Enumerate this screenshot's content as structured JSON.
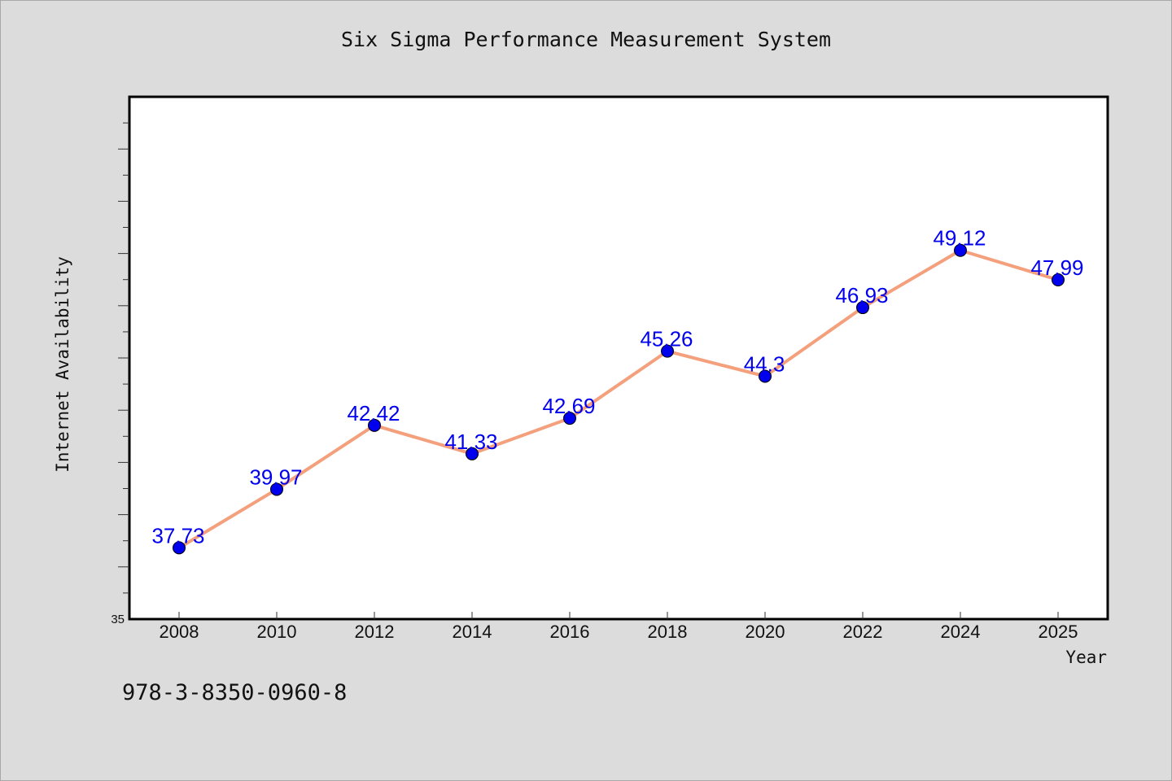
{
  "chart_data": {
    "type": "line",
    "title": "Six Sigma Performance Measurement System",
    "xlabel": "Year",
    "ylabel": "Internet Availability",
    "categories": [
      "2008",
      "2010",
      "2012",
      "2014",
      "2016",
      "2018",
      "2020",
      "2022",
      "2024",
      "2025"
    ],
    "series": [
      {
        "values": [
          37.73,
          39.97,
          42.42,
          41.33,
          42.69,
          45.26,
          44.3,
          46.93,
          49.12,
          47.99
        ]
      }
    ],
    "data_labels": [
      "37.73",
      "39.97",
      "42.42",
      "41.33",
      "42.69",
      "45.26",
      "44.3",
      "46.93",
      "49.12",
      "47.99"
    ],
    "y_tick_labels": [
      "35"
    ],
    "ylim": [
      35,
      55
    ],
    "grid": false,
    "legend": "none",
    "colors": {
      "line": "#f4a07c",
      "marker": "#0000ee",
      "data_label": "#0000ee",
      "plot_background": "#ffffff",
      "page_background": "#dcdcdc"
    }
  },
  "footer": {
    "isbn": "978-3-8350-0960-8"
  }
}
